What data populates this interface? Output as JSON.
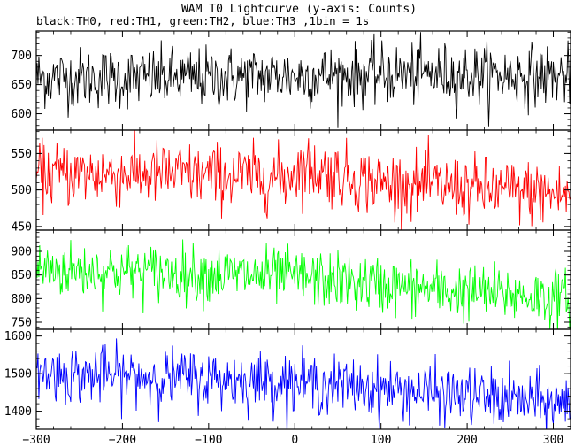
{
  "chart_data": {
    "type": "line",
    "title": "WAM T0 Lightcurve (y-axis: Counts)",
    "subtitle": "black:TH0, red:TH1, green:TH2, blue:TH3 ,1bin = 1s",
    "xlabel": "",
    "x_range": [
      -300,
      320
    ],
    "x_ticks": [
      -300,
      -200,
      -100,
      0,
      100,
      200,
      300
    ],
    "x_tick_labels": [
      "−300",
      "−200",
      "−100",
      "0",
      "100",
      "200",
      "300"
    ],
    "bin_seconds": 1,
    "grid": false,
    "panels": [
      {
        "series": "TH0",
        "color": "#000000",
        "ylim": [
          572,
          742
        ],
        "y_ticks": [
          600,
          650,
          700
        ],
        "y_tick_labels": [
          "600",
          "650",
          "700"
        ],
        "trend": [
          [
            -300,
            662
          ],
          [
            -150,
            661
          ],
          [
            0,
            665
          ],
          [
            150,
            668
          ],
          [
            320,
            665
          ]
        ],
        "noise_sd": 26
      },
      {
        "series": "TH1",
        "color": "#ff0000",
        "ylim": [
          445,
          582
        ],
        "y_ticks": [
          450,
          500,
          550
        ],
        "y_tick_labels": [
          "450",
          "500",
          "550"
        ],
        "trend": [
          [
            -300,
            522
          ],
          [
            -150,
            522
          ],
          [
            -10,
            516
          ],
          [
            0,
            528
          ],
          [
            10,
            530
          ],
          [
            100,
            510
          ],
          [
            200,
            502
          ],
          [
            320,
            493
          ]
        ],
        "noise_sd": 22
      },
      {
        "series": "TH2",
        "color": "#00ff00",
        "ylim": [
          735,
          945
        ],
        "y_ticks": [
          750,
          800,
          850,
          900
        ],
        "y_tick_labels": [
          "750",
          "800",
          "850",
          "900"
        ],
        "trend": [
          [
            -300,
            862
          ],
          [
            -150,
            855
          ],
          [
            0,
            845
          ],
          [
            150,
            820
          ],
          [
            320,
            800
          ]
        ],
        "noise_sd": 30
      },
      {
        "series": "TH3",
        "color": "#0000ff",
        "ylim": [
          1352,
          1618
        ],
        "y_ticks": [
          1400,
          1500,
          1600
        ],
        "y_tick_labels": [
          "1400",
          "1500",
          "1600"
        ],
        "trend": [
          [
            -300,
            1500
          ],
          [
            -150,
            1490
          ],
          [
            0,
            1478
          ],
          [
            150,
            1450
          ],
          [
            320,
            1418
          ]
        ],
        "noise_sd": 38
      }
    ]
  }
}
